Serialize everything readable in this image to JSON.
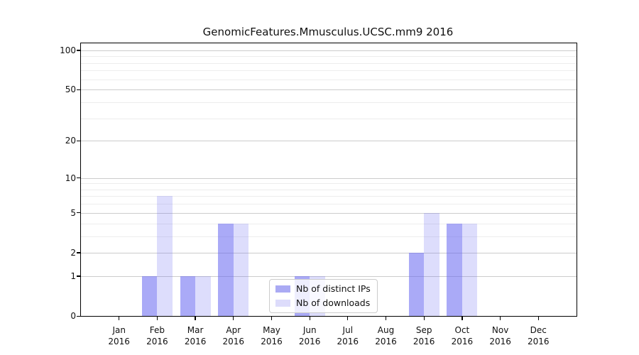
{
  "chart_data": {
    "type": "bar",
    "title": "GenomicFeatures.Mmusculus.UCSC.mm9 2016",
    "categories": [
      "Jan 2016",
      "Feb 2016",
      "Mar 2016",
      "Apr 2016",
      "May 2016",
      "Jun 2016",
      "Jul 2016",
      "Aug 2016",
      "Sep 2016",
      "Oct 2016",
      "Nov 2016",
      "Dec 2016"
    ],
    "series": [
      {
        "name": "Nb of distinct IPs",
        "color": "rgba(100,100,240,0.55)",
        "color_hex": "#aaaaf4",
        "values": [
          0,
          1,
          1,
          4,
          0,
          1,
          0,
          0,
          2,
          4,
          0,
          0
        ]
      },
      {
        "name": "Nb of downloads",
        "color": "rgba(100,100,240,0.22)",
        "color_hex": "#dddcfb",
        "values": [
          0,
          7,
          1,
          4,
          0,
          1,
          0,
          0,
          5,
          4,
          0,
          0
        ]
      }
    ],
    "xlabel": "",
    "ylabel": "",
    "y_scale": "log1p",
    "ylim": [
      0,
      113
    ],
    "y_major_ticks": [
      0,
      1,
      2,
      5,
      10,
      20,
      50,
      100
    ],
    "y_minor_gridlines": [
      3,
      4,
      6,
      7,
      8,
      9,
      30,
      40,
      60,
      70,
      80,
      90
    ],
    "grid": "horizontal, on",
    "legend_position": "inside lower-center",
    "spine_color": "#000000",
    "major_grid_color": "#cccccc",
    "minor_grid_color": "#ededed"
  }
}
